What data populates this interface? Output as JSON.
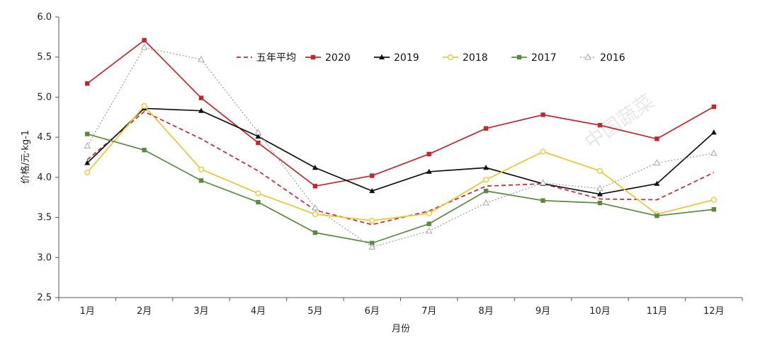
{
  "chart_data": {
    "type": "line",
    "title": "",
    "xlabel": "月份",
    "ylabel": "价格/元·kg-1",
    "ylim": [
      2.5,
      6.0
    ],
    "yticks": [
      "2.5",
      "3.0",
      "3.5",
      "4.0",
      "4.5",
      "5.0",
      "5.5",
      "6.0"
    ],
    "categories": [
      "1月",
      "2月",
      "3月",
      "4月",
      "5月",
      "6月",
      "7月",
      "8月",
      "9月",
      "10月",
      "11月",
      "12月"
    ],
    "legend_position": "top",
    "watermark": "中国蔬菜",
    "series": [
      {
        "name": "五年平均",
        "color": "#c0282d",
        "style": "dashed",
        "marker": "none",
        "values": [
          4.22,
          4.82,
          4.48,
          4.08,
          3.59,
          3.41,
          3.58,
          3.89,
          3.92,
          3.73,
          3.72,
          4.06
        ]
      },
      {
        "name": "2020",
        "color": "#c0282d",
        "style": "solid",
        "marker": "square",
        "values": [
          5.17,
          5.71,
          4.99,
          4.43,
          3.89,
          4.02,
          4.29,
          4.61,
          4.78,
          4.65,
          4.48,
          4.88
        ]
      },
      {
        "name": "2019",
        "color": "#111111",
        "style": "solid",
        "marker": "triangle",
        "values": [
          4.18,
          4.86,
          4.83,
          4.51,
          4.12,
          3.83,
          4.07,
          4.12,
          3.92,
          3.79,
          3.92,
          4.56
        ]
      },
      {
        "name": "2018",
        "color": "#e8c631",
        "style": "solid",
        "marker": "circle-open",
        "values": [
          4.06,
          4.89,
          4.1,
          3.8,
          3.54,
          3.46,
          3.55,
          3.97,
          4.32,
          4.08,
          3.54,
          3.72
        ]
      },
      {
        "name": "2017",
        "color": "#5a8a40",
        "style": "solid",
        "marker": "square",
        "values": [
          4.54,
          4.34,
          3.96,
          3.69,
          3.31,
          3.18,
          3.42,
          3.83,
          3.71,
          3.68,
          3.52,
          3.6
        ]
      },
      {
        "name": "2016",
        "color": "#a8a8a8",
        "style": "dotted",
        "marker": "triangle-open",
        "values": [
          4.39,
          5.62,
          5.47,
          4.56,
          3.62,
          3.13,
          3.33,
          3.68,
          3.93,
          3.86,
          4.18,
          4.3
        ]
      }
    ]
  }
}
